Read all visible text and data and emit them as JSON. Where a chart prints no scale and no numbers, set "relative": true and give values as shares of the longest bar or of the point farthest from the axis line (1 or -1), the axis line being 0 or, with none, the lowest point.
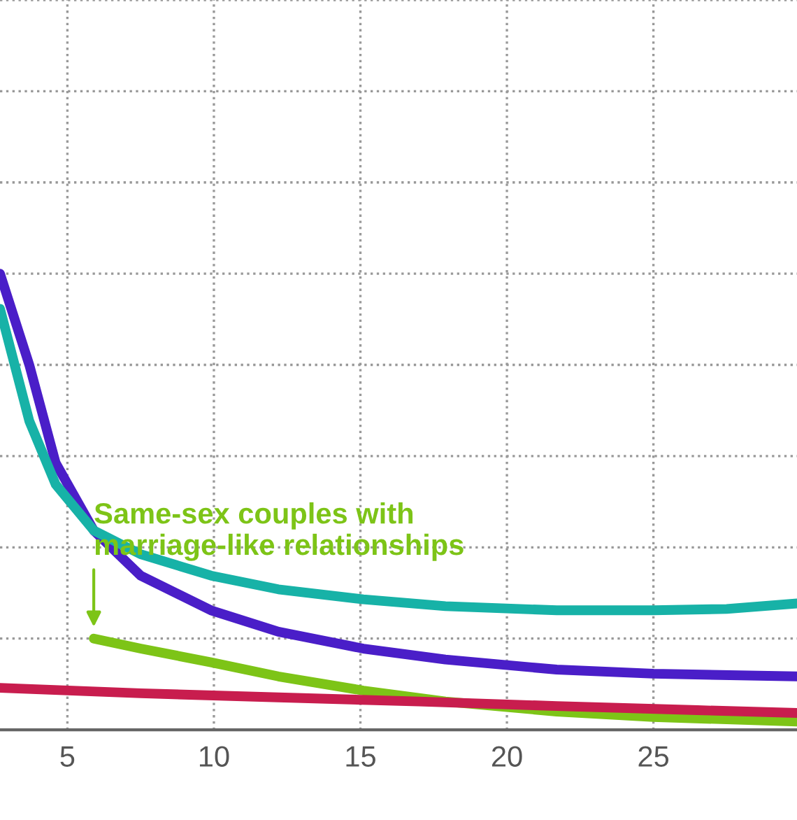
{
  "chart_data": {
    "type": "line",
    "relative": true,
    "xlim": [
      2.7,
      29.9
    ],
    "xticks": [
      5,
      10,
      15,
      20,
      25
    ],
    "tick_labels": "x",
    "grid": true,
    "legend": false,
    "line_style": "solid",
    "marker": "none",
    "series": [
      {
        "color": "#4a1ec8",
        "x": [
          2.7,
          3.7,
          4.6,
          5.9,
          7.5,
          9.9,
          12.2,
          15.1,
          17.9,
          21.7,
          25,
          29.9
        ],
        "values": [
          1.0,
          0.8,
          0.585,
          0.437,
          0.338,
          0.262,
          0.215,
          0.178,
          0.154,
          0.132,
          0.123,
          0.117
        ]
      },
      {
        "color": "#17b2a7",
        "x": [
          2.7,
          3.7,
          4.6,
          5.9,
          7.5,
          9.9,
          12.2,
          15.1,
          17.9,
          21.7,
          25,
          27.5,
          29.9
        ],
        "values": [
          0.923,
          0.677,
          0.538,
          0.437,
          0.385,
          0.338,
          0.308,
          0.286,
          0.271,
          0.262,
          0.262,
          0.265,
          0.277
        ]
      },
      {
        "color": "#7dc417",
        "x": [
          5.9,
          7.5,
          9.9,
          12.2,
          15.1,
          17.9,
          21.7,
          25,
          29.9
        ],
        "values": [
          0.2,
          0.178,
          0.148,
          0.117,
          0.086,
          0.062,
          0.04,
          0.028,
          0.018
        ]
      },
      {
        "color": "#c81d4e",
        "x": [
          2.7,
          7.5,
          12.2,
          17,
          21.7,
          26.5,
          29.9
        ],
        "values": [
          0.092,
          0.08,
          0.071,
          0.062,
          0.052,
          0.043,
          0.037
        ]
      }
    ],
    "annotations": [
      {
        "text": "Same-sex couples with\nmarriage-like relationships",
        "x": 5.9,
        "y": 0.2
      }
    ]
  }
}
